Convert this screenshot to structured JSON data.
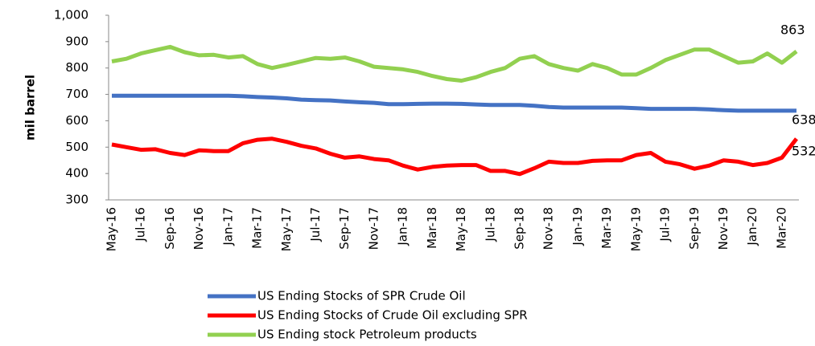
{
  "chart_data": {
    "type": "line",
    "ylabel": "mil barrel",
    "categories": [
      "May-16",
      null,
      "Jul-16",
      null,
      "Sep-16",
      null,
      "Nov-16",
      null,
      "Jan-17",
      null,
      "Mar-17",
      null,
      "May-17",
      null,
      "Jul-17",
      null,
      "Sep-17",
      null,
      "Nov-17",
      null,
      "Jan-18",
      null,
      "Mar-18",
      null,
      "May-18",
      null,
      "Jul-18",
      null,
      "Sep-18",
      null,
      "Nov-18",
      null,
      "Jan-19",
      null,
      "Mar-19",
      null,
      "May-19",
      null,
      "Jul-19",
      null,
      "Sep-19",
      null,
      "Nov-19",
      null,
      "Jan-20",
      null,
      "Mar-20",
      null
    ],
    "ylim": [
      300,
      1000
    ],
    "yticks": [
      300,
      400,
      500,
      600,
      700,
      800,
      900,
      {
        "value": 1000,
        "label": "1,000"
      }
    ],
    "grid": false,
    "legend": "bottom",
    "series": [
      {
        "name": "US Ending Stocks of SPR Crude Oil",
        "color": "#4472c4",
        "values": [
          695,
          695,
          695,
          695,
          695,
          695,
          695,
          695,
          695,
          693,
          690,
          688,
          685,
          680,
          678,
          677,
          673,
          670,
          668,
          663,
          663,
          664,
          665,
          665,
          664,
          662,
          660,
          660,
          660,
          657,
          652,
          650,
          650,
          650,
          650,
          650,
          648,
          645,
          645,
          645,
          645,
          643,
          640,
          638,
          638,
          638,
          638,
          638
        ]
      },
      {
        "name": "US Ending Stocks of Crude Oil excluding SPR",
        "color": "#ff0000",
        "values": [
          510,
          500,
          490,
          492,
          478,
          470,
          488,
          485,
          485,
          515,
          528,
          532,
          520,
          505,
          495,
          475,
          460,
          465,
          455,
          450,
          430,
          415,
          425,
          430,
          432,
          432,
          410,
          410,
          398,
          420,
          445,
          440,
          440,
          448,
          450,
          450,
          470,
          478,
          445,
          435,
          418,
          430,
          450,
          445,
          432,
          440,
          460,
          532
        ]
      },
      {
        "name": "US Ending stock Petroleum products",
        "color": "#92d050",
        "values": [
          825,
          835,
          855,
          868,
          880,
          860,
          848,
          850,
          840,
          845,
          815,
          800,
          812,
          825,
          838,
          835,
          840,
          825,
          805,
          800,
          795,
          785,
          770,
          758,
          752,
          765,
          785,
          800,
          835,
          845,
          815,
          800,
          790,
          815,
          800,
          775,
          775,
          800,
          830,
          850,
          870,
          870,
          845,
          820,
          825,
          855,
          820,
          863
        ]
      }
    ]
  }
}
